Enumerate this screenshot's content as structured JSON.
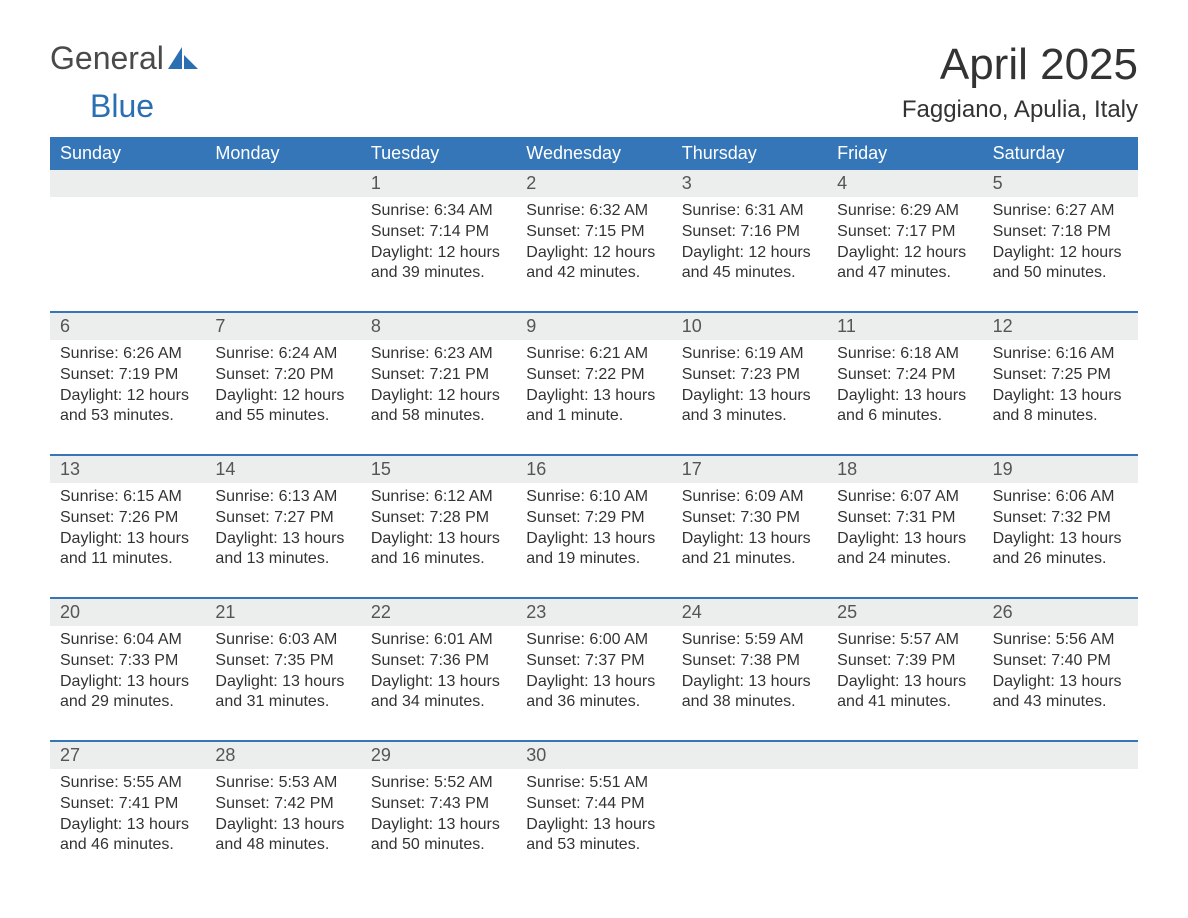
{
  "brand": {
    "word1": "General",
    "word2": "Blue",
    "accent_color": "#2b6fb3",
    "text_color": "#4a4a4a"
  },
  "title": {
    "month": "April 2025",
    "location": "Faggiano, Apulia, Italy"
  },
  "colors": {
    "header_bg": "#3576b9",
    "header_text": "#ffffff",
    "daynum_bg": "#eceded",
    "border": "#3576b9",
    "body_text": "#333333",
    "background": "#ffffff"
  },
  "typography": {
    "month_fontsize": 44,
    "location_fontsize": 24,
    "dayheader_fontsize": 18,
    "daynum_fontsize": 18,
    "cell_fontsize": 16
  },
  "layout": {
    "columns": 7,
    "first_day_column": 2,
    "days_in_month": 30
  },
  "day_names": [
    "Sunday",
    "Monday",
    "Tuesday",
    "Wednesday",
    "Thursday",
    "Friday",
    "Saturday"
  ],
  "days": [
    {
      "n": 1,
      "sunrise": "6:34 AM",
      "sunset": "7:14 PM",
      "daylight": "12 hours and 39 minutes."
    },
    {
      "n": 2,
      "sunrise": "6:32 AM",
      "sunset": "7:15 PM",
      "daylight": "12 hours and 42 minutes."
    },
    {
      "n": 3,
      "sunrise": "6:31 AM",
      "sunset": "7:16 PM",
      "daylight": "12 hours and 45 minutes."
    },
    {
      "n": 4,
      "sunrise": "6:29 AM",
      "sunset": "7:17 PM",
      "daylight": "12 hours and 47 minutes."
    },
    {
      "n": 5,
      "sunrise": "6:27 AM",
      "sunset": "7:18 PM",
      "daylight": "12 hours and 50 minutes."
    },
    {
      "n": 6,
      "sunrise": "6:26 AM",
      "sunset": "7:19 PM",
      "daylight": "12 hours and 53 minutes."
    },
    {
      "n": 7,
      "sunrise": "6:24 AM",
      "sunset": "7:20 PM",
      "daylight": "12 hours and 55 minutes."
    },
    {
      "n": 8,
      "sunrise": "6:23 AM",
      "sunset": "7:21 PM",
      "daylight": "12 hours and 58 minutes."
    },
    {
      "n": 9,
      "sunrise": "6:21 AM",
      "sunset": "7:22 PM",
      "daylight": "13 hours and 1 minute."
    },
    {
      "n": 10,
      "sunrise": "6:19 AM",
      "sunset": "7:23 PM",
      "daylight": "13 hours and 3 minutes."
    },
    {
      "n": 11,
      "sunrise": "6:18 AM",
      "sunset": "7:24 PM",
      "daylight": "13 hours and 6 minutes."
    },
    {
      "n": 12,
      "sunrise": "6:16 AM",
      "sunset": "7:25 PM",
      "daylight": "13 hours and 8 minutes."
    },
    {
      "n": 13,
      "sunrise": "6:15 AM",
      "sunset": "7:26 PM",
      "daylight": "13 hours and 11 minutes."
    },
    {
      "n": 14,
      "sunrise": "6:13 AM",
      "sunset": "7:27 PM",
      "daylight": "13 hours and 13 minutes."
    },
    {
      "n": 15,
      "sunrise": "6:12 AM",
      "sunset": "7:28 PM",
      "daylight": "13 hours and 16 minutes."
    },
    {
      "n": 16,
      "sunrise": "6:10 AM",
      "sunset": "7:29 PM",
      "daylight": "13 hours and 19 minutes."
    },
    {
      "n": 17,
      "sunrise": "6:09 AM",
      "sunset": "7:30 PM",
      "daylight": "13 hours and 21 minutes."
    },
    {
      "n": 18,
      "sunrise": "6:07 AM",
      "sunset": "7:31 PM",
      "daylight": "13 hours and 24 minutes."
    },
    {
      "n": 19,
      "sunrise": "6:06 AM",
      "sunset": "7:32 PM",
      "daylight": "13 hours and 26 minutes."
    },
    {
      "n": 20,
      "sunrise": "6:04 AM",
      "sunset": "7:33 PM",
      "daylight": "13 hours and 29 minutes."
    },
    {
      "n": 21,
      "sunrise": "6:03 AM",
      "sunset": "7:35 PM",
      "daylight": "13 hours and 31 minutes."
    },
    {
      "n": 22,
      "sunrise": "6:01 AM",
      "sunset": "7:36 PM",
      "daylight": "13 hours and 34 minutes."
    },
    {
      "n": 23,
      "sunrise": "6:00 AM",
      "sunset": "7:37 PM",
      "daylight": "13 hours and 36 minutes."
    },
    {
      "n": 24,
      "sunrise": "5:59 AM",
      "sunset": "7:38 PM",
      "daylight": "13 hours and 38 minutes."
    },
    {
      "n": 25,
      "sunrise": "5:57 AM",
      "sunset": "7:39 PM",
      "daylight": "13 hours and 41 minutes."
    },
    {
      "n": 26,
      "sunrise": "5:56 AM",
      "sunset": "7:40 PM",
      "daylight": "13 hours and 43 minutes."
    },
    {
      "n": 27,
      "sunrise": "5:55 AM",
      "sunset": "7:41 PM",
      "daylight": "13 hours and 46 minutes."
    },
    {
      "n": 28,
      "sunrise": "5:53 AM",
      "sunset": "7:42 PM",
      "daylight": "13 hours and 48 minutes."
    },
    {
      "n": 29,
      "sunrise": "5:52 AM",
      "sunset": "7:43 PM",
      "daylight": "13 hours and 50 minutes."
    },
    {
      "n": 30,
      "sunrise": "5:51 AM",
      "sunset": "7:44 PM",
      "daylight": "13 hours and 53 minutes."
    }
  ],
  "labels": {
    "sunrise": "Sunrise: ",
    "sunset": "Sunset: ",
    "daylight": "Daylight: "
  }
}
